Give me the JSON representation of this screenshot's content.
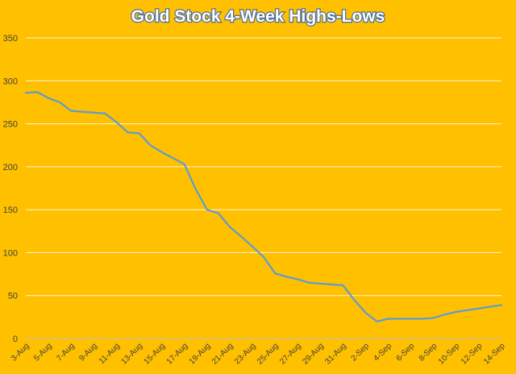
{
  "chart_data": {
    "type": "line",
    "title": "Gold Stock 4-Week Highs-Lows",
    "xlabel": "",
    "ylabel": "",
    "ylim": [
      0,
      350
    ],
    "yticks": [
      "0",
      "50",
      "100",
      "150",
      "200",
      "250",
      "300",
      "350"
    ],
    "grid": true,
    "legend": "none",
    "x": [
      "3-Aug",
      "4-Aug",
      "5-Aug",
      "6-Aug",
      "7-Aug",
      "8-Aug",
      "9-Aug",
      "10-Aug",
      "11-Aug",
      "12-Aug",
      "13-Aug",
      "14-Aug",
      "15-Aug",
      "16-Aug",
      "17-Aug",
      "18-Aug",
      "19-Aug",
      "20-Aug",
      "21-Aug",
      "22-Aug",
      "23-Aug",
      "24-Aug",
      "25-Aug",
      "26-Aug",
      "27-Aug",
      "28-Aug",
      "29-Aug",
      "30-Aug",
      "31-Aug",
      "1-Sep",
      "2-Sep",
      "3-Sep",
      "4-Sep",
      "5-Sep",
      "6-Sep",
      "7-Sep",
      "8-Sep",
      "9-Sep",
      "10-Sep",
      "11-Sep",
      "12-Sep",
      "13-Sep",
      "14-Sep"
    ],
    "xtick_labels": [
      "3-Aug",
      "5-Aug",
      "7-Aug",
      "9-Aug",
      "11-Aug",
      "13-Aug",
      "15-Aug",
      "17-Aug",
      "19-Aug",
      "21-Aug",
      "23-Aug",
      "25-Aug",
      "27-Aug",
      "29-Aug",
      "31-Aug",
      "2-Sep",
      "4-Sep",
      "6-Sep",
      "8-Sep",
      "10-Sep",
      "12-Sep",
      "14-Sep"
    ],
    "series": [
      {
        "values": [
          286,
          287,
          280,
          275,
          265,
          264,
          263,
          262,
          252,
          240,
          239,
          225,
          217,
          210,
          203,
          174,
          150,
          146,
          130,
          119,
          107,
          95,
          76,
          72,
          69,
          65,
          64,
          63,
          62,
          45,
          30,
          20,
          23,
          23,
          23,
          23,
          24,
          28,
          31,
          33,
          35,
          37,
          39
        ]
      }
    ],
    "line_color": "#5B9BD5",
    "background_color": "#FFC000"
  }
}
